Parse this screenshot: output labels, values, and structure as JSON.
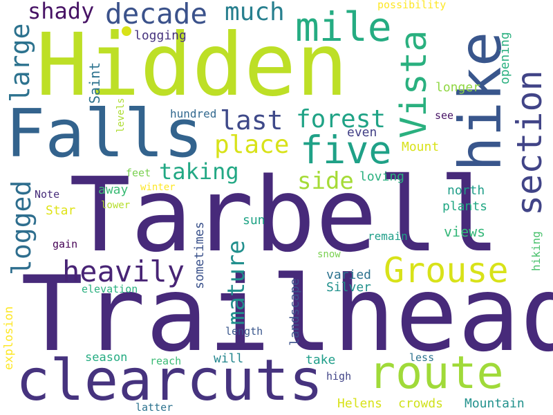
{
  "words": [
    {
      "text": "Tarbell",
      "color": "#472a7a"
    },
    {
      "text": "Trailhead",
      "color": "#472a7a"
    },
    {
      "text": "Hidden",
      "color": "#bddf26"
    },
    {
      "text": "Falls",
      "color": "#33638d"
    },
    {
      "text": "hike",
      "color": "#39568c"
    },
    {
      "text": "clearcuts",
      "color": "#46337e"
    },
    {
      "text": "route",
      "color": "#a0da39"
    },
    {
      "text": "Grouse",
      "color": "#d8e219"
    },
    {
      "text": "Vista",
      "color": "#2ab07f"
    },
    {
      "text": "section",
      "color": "#414487"
    },
    {
      "text": "mile",
      "color": "#25ac82"
    },
    {
      "text": "five",
      "color": "#1fa187"
    },
    {
      "text": "decade",
      "color": "#3b528b"
    },
    {
      "text": "shady",
      "color": "#471365"
    },
    {
      "text": "much",
      "color": "#277f8e"
    },
    {
      "text": "large",
      "color": "#2c728e"
    },
    {
      "text": "last",
      "color": "#3e4989"
    },
    {
      "text": "forest",
      "color": "#20a386"
    },
    {
      "text": "place",
      "color": "#d8e219"
    },
    {
      "text": "taking",
      "color": "#22a884"
    },
    {
      "text": "side",
      "color": "#a5db36"
    },
    {
      "text": "logged",
      "color": "#2e6e8e"
    },
    {
      "text": "heavily",
      "color": "#482475"
    },
    {
      "text": "mature",
      "color": "#218f8d"
    },
    {
      "text": "logging",
      "color": "#46337e"
    },
    {
      "text": "possibility",
      "color": "#fde725"
    },
    {
      "text": "opening",
      "color": "#2ab07f"
    },
    {
      "text": "Saint",
      "color": "#2c728e"
    },
    {
      "text": "longer",
      "color": "#90d743"
    },
    {
      "text": "hundred",
      "color": "#31688e"
    },
    {
      "text": "see",
      "color": "#471365"
    },
    {
      "text": "levels",
      "color": "#addc30"
    },
    {
      "text": "even",
      "color": "#424086"
    },
    {
      "text": "Mount",
      "color": "#d8e219"
    },
    {
      "text": "feet",
      "color": "#7ad151"
    },
    {
      "text": "loving",
      "color": "#2ab07f"
    },
    {
      "text": "north",
      "color": "#1f9e89"
    },
    {
      "text": "Note",
      "color": "#472c7a"
    },
    {
      "text": "away",
      "color": "#3bbb75"
    },
    {
      "text": "winter",
      "color": "#fde725"
    },
    {
      "text": "plants",
      "color": "#22a884"
    },
    {
      "text": "Star",
      "color": "#dfe318"
    },
    {
      "text": "lower",
      "color": "#b5de2b"
    },
    {
      "text": "sometimes",
      "color": "#3b528b"
    },
    {
      "text": "sun",
      "color": "#20a386"
    },
    {
      "text": "views",
      "color": "#35b779"
    },
    {
      "text": "hiking",
      "color": "#4ac16d"
    },
    {
      "text": "remain",
      "color": "#1f9e89"
    },
    {
      "text": "gain",
      "color": "#440154"
    },
    {
      "text": "snow",
      "color": "#7ad151"
    },
    {
      "text": "elevation",
      "color": "#2ab07f"
    },
    {
      "text": "landscape",
      "color": "#3b528b"
    },
    {
      "text": "varied",
      "color": "#2c728e"
    },
    {
      "text": "Silver",
      "color": "#21918c"
    },
    {
      "text": "explosion",
      "color": "#fde725"
    },
    {
      "text": "length",
      "color": "#39568c"
    },
    {
      "text": "season",
      "color": "#25ac82"
    },
    {
      "text": "reach",
      "color": "#3bbb75"
    },
    {
      "text": "will",
      "color": "#24868e"
    },
    {
      "text": "take",
      "color": "#1f9e89"
    },
    {
      "text": "less",
      "color": "#2c728e"
    },
    {
      "text": "high",
      "color": "#414487"
    },
    {
      "text": "Helens",
      "color": "#d8e219"
    },
    {
      "text": "crowds",
      "color": "#d0e11c"
    },
    {
      "text": "Mountain",
      "color": "#21918c"
    },
    {
      "text": "latter",
      "color": "#2c728e"
    }
  ]
}
